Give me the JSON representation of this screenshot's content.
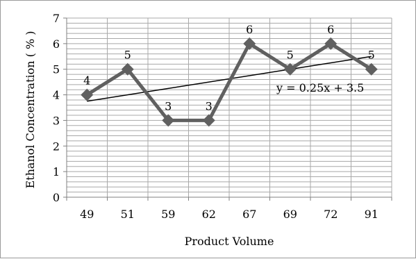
{
  "chart_data": {
    "type": "line",
    "title": "",
    "xlabel": "Product Volume",
    "ylabel": "Ethanol Concentration ( % )",
    "categories": [
      "49",
      "51",
      "59",
      "62",
      "67",
      "69",
      "72",
      "91"
    ],
    "series": [
      {
        "values": [
          4,
          5,
          3,
          3,
          6,
          5,
          6,
          5
        ],
        "color": "#606060",
        "marker": "diamond"
      }
    ],
    "data_labels": [
      "4",
      "5",
      "3",
      "3",
      "6",
      "5",
      "6",
      "5"
    ],
    "ylim": [
      0,
      7
    ],
    "y_ticks": [
      "0",
      "1",
      "2",
      "3",
      "4",
      "5",
      "6",
      "7"
    ],
    "grid": true,
    "trendline": {
      "type": "linear",
      "slope": 0.25,
      "intercept": 3.5,
      "equation": "y = 0.25x + 3.5",
      "color": "#000000"
    },
    "legend": "none"
  }
}
